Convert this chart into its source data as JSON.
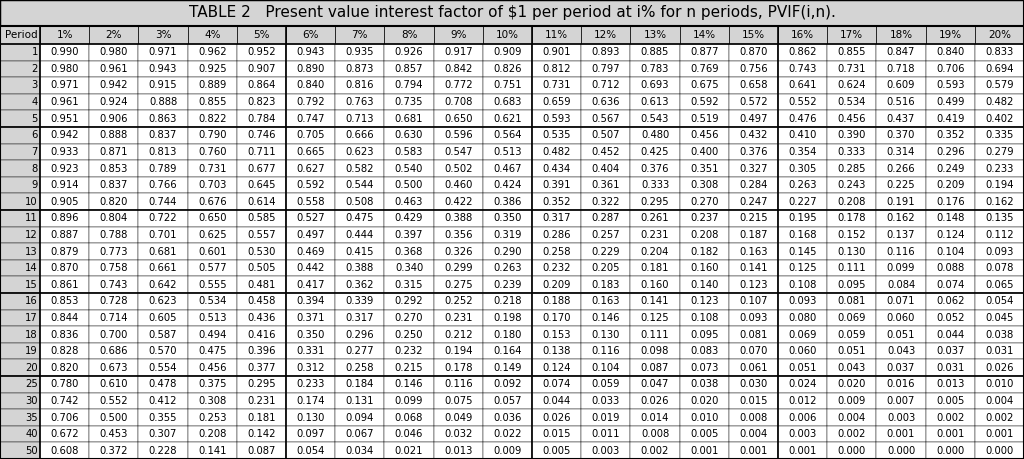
{
  "title": "TABLE 2   Present value interest factor of $1 per period at i% for n periods, PVIF(i,n).",
  "columns": [
    "Period",
    "1%",
    "2%",
    "3%",
    "4%",
    "5%",
    "6%",
    "7%",
    "8%",
    "9%",
    "10%",
    "11%",
    "12%",
    "13%",
    "14%",
    "15%",
    "16%",
    "17%",
    "18%",
    "19%",
    "20%"
  ],
  "rows": [
    [
      1,
      0.99,
      0.98,
      0.971,
      0.962,
      0.952,
      0.943,
      0.935,
      0.926,
      0.917,
      0.909,
      0.901,
      0.893,
      0.885,
      0.877,
      0.87,
      0.862,
      0.855,
      0.847,
      0.84,
      0.833
    ],
    [
      2,
      0.98,
      0.961,
      0.943,
      0.925,
      0.907,
      0.89,
      0.873,
      0.857,
      0.842,
      0.826,
      0.812,
      0.797,
      0.783,
      0.769,
      0.756,
      0.743,
      0.731,
      0.718,
      0.706,
      0.694
    ],
    [
      3,
      0.971,
      0.942,
      0.915,
      0.889,
      0.864,
      0.84,
      0.816,
      0.794,
      0.772,
      0.751,
      0.731,
      0.712,
      0.693,
      0.675,
      0.658,
      0.641,
      0.624,
      0.609,
      0.593,
      0.579
    ],
    [
      4,
      0.961,
      0.924,
      0.888,
      0.855,
      0.823,
      0.792,
      0.763,
      0.735,
      0.708,
      0.683,
      0.659,
      0.636,
      0.613,
      0.592,
      0.572,
      0.552,
      0.534,
      0.516,
      0.499,
      0.482
    ],
    [
      5,
      0.951,
      0.906,
      0.863,
      0.822,
      0.784,
      0.747,
      0.713,
      0.681,
      0.65,
      0.621,
      0.593,
      0.567,
      0.543,
      0.519,
      0.497,
      0.476,
      0.456,
      0.437,
      0.419,
      0.402
    ],
    [
      6,
      0.942,
      0.888,
      0.837,
      0.79,
      0.746,
      0.705,
      0.666,
      0.63,
      0.596,
      0.564,
      0.535,
      0.507,
      0.48,
      0.456,
      0.432,
      0.41,
      0.39,
      0.37,
      0.352,
      0.335
    ],
    [
      7,
      0.933,
      0.871,
      0.813,
      0.76,
      0.711,
      0.665,
      0.623,
      0.583,
      0.547,
      0.513,
      0.482,
      0.452,
      0.425,
      0.4,
      0.376,
      0.354,
      0.333,
      0.314,
      0.296,
      0.279
    ],
    [
      8,
      0.923,
      0.853,
      0.789,
      0.731,
      0.677,
      0.627,
      0.582,
      0.54,
      0.502,
      0.467,
      0.434,
      0.404,
      0.376,
      0.351,
      0.327,
      0.305,
      0.285,
      0.266,
      0.249,
      0.233
    ],
    [
      9,
      0.914,
      0.837,
      0.766,
      0.703,
      0.645,
      0.592,
      0.544,
      0.5,
      0.46,
      0.424,
      0.391,
      0.361,
      0.333,
      0.308,
      0.284,
      0.263,
      0.243,
      0.225,
      0.209,
      0.194
    ],
    [
      10,
      0.905,
      0.82,
      0.744,
      0.676,
      0.614,
      0.558,
      0.508,
      0.463,
      0.422,
      0.386,
      0.352,
      0.322,
      0.295,
      0.27,
      0.247,
      0.227,
      0.208,
      0.191,
      0.176,
      0.162
    ],
    [
      11,
      0.896,
      0.804,
      0.722,
      0.65,
      0.585,
      0.527,
      0.475,
      0.429,
      0.388,
      0.35,
      0.317,
      0.287,
      0.261,
      0.237,
      0.215,
      0.195,
      0.178,
      0.162,
      0.148,
      0.135
    ],
    [
      12,
      0.887,
      0.788,
      0.701,
      0.625,
      0.557,
      0.497,
      0.444,
      0.397,
      0.356,
      0.319,
      0.286,
      0.257,
      0.231,
      0.208,
      0.187,
      0.168,
      0.152,
      0.137,
      0.124,
      0.112
    ],
    [
      13,
      0.879,
      0.773,
      0.681,
      0.601,
      0.53,
      0.469,
      0.415,
      0.368,
      0.326,
      0.29,
      0.258,
      0.229,
      0.204,
      0.182,
      0.163,
      0.145,
      0.13,
      0.116,
      0.104,
      0.093
    ],
    [
      14,
      0.87,
      0.758,
      0.661,
      0.577,
      0.505,
      0.442,
      0.388,
      0.34,
      0.299,
      0.263,
      0.232,
      0.205,
      0.181,
      0.16,
      0.141,
      0.125,
      0.111,
      0.099,
      0.088,
      0.078
    ],
    [
      15,
      0.861,
      0.743,
      0.642,
      0.555,
      0.481,
      0.417,
      0.362,
      0.315,
      0.275,
      0.239,
      0.209,
      0.183,
      0.16,
      0.14,
      0.123,
      0.108,
      0.095,
      0.084,
      0.074,
      0.065
    ],
    [
      16,
      0.853,
      0.728,
      0.623,
      0.534,
      0.458,
      0.394,
      0.339,
      0.292,
      0.252,
      0.218,
      0.188,
      0.163,
      0.141,
      0.123,
      0.107,
      0.093,
      0.081,
      0.071,
      0.062,
      0.054
    ],
    [
      17,
      0.844,
      0.714,
      0.605,
      0.513,
      0.436,
      0.371,
      0.317,
      0.27,
      0.231,
      0.198,
      0.17,
      0.146,
      0.125,
      0.108,
      0.093,
      0.08,
      0.069,
      0.06,
      0.052,
      0.045
    ],
    [
      18,
      0.836,
      0.7,
      0.587,
      0.494,
      0.416,
      0.35,
      0.296,
      0.25,
      0.212,
      0.18,
      0.153,
      0.13,
      0.111,
      0.095,
      0.081,
      0.069,
      0.059,
      0.051,
      0.044,
      0.038
    ],
    [
      19,
      0.828,
      0.686,
      0.57,
      0.475,
      0.396,
      0.331,
      0.277,
      0.232,
      0.194,
      0.164,
      0.138,
      0.116,
      0.098,
      0.083,
      0.07,
      0.06,
      0.051,
      0.043,
      0.037,
      0.031
    ],
    [
      20,
      0.82,
      0.673,
      0.554,
      0.456,
      0.377,
      0.312,
      0.258,
      0.215,
      0.178,
      0.149,
      0.124,
      0.104,
      0.087,
      0.073,
      0.061,
      0.051,
      0.043,
      0.037,
      0.031,
      0.026
    ],
    [
      25,
      0.78,
      0.61,
      0.478,
      0.375,
      0.295,
      0.233,
      0.184,
      0.146,
      0.116,
      0.092,
      0.074,
      0.059,
      0.047,
      0.038,
      0.03,
      0.024,
      0.02,
      0.016,
      0.013,
      0.01
    ],
    [
      30,
      0.742,
      0.552,
      0.412,
      0.308,
      0.231,
      0.174,
      0.131,
      0.099,
      0.075,
      0.057,
      0.044,
      0.033,
      0.026,
      0.02,
      0.015,
      0.012,
      0.009,
      0.007,
      0.005,
      0.004
    ],
    [
      35,
      0.706,
      0.5,
      0.355,
      0.253,
      0.181,
      0.13,
      0.094,
      0.068,
      0.049,
      0.036,
      0.026,
      0.019,
      0.014,
      0.01,
      0.008,
      0.006,
      0.004,
      0.003,
      0.002,
      0.002
    ],
    [
      40,
      0.672,
      0.453,
      0.307,
      0.208,
      0.142,
      0.097,
      0.067,
      0.046,
      0.032,
      0.022,
      0.015,
      0.011,
      0.008,
      0.005,
      0.004,
      0.003,
      0.002,
      0.001,
      0.001,
      0.001
    ],
    [
      50,
      0.608,
      0.372,
      0.228,
      0.141,
      0.087,
      0.054,
      0.034,
      0.021,
      0.013,
      0.009,
      0.005,
      0.003,
      0.002,
      0.001,
      0.001,
      0.001,
      0.0,
      0.0,
      0.0,
      0.0
    ]
  ],
  "group_sep_after_periods": [
    5,
    10,
    15,
    20
  ],
  "thick_col_after": [
    5,
    10,
    15
  ],
  "bg_gray": "#d4d4d4",
  "bg_white": "#ffffff",
  "border_color": "#000000",
  "text_color": "#000000",
  "title_fontsize": 11.0,
  "header_fontsize": 7.5,
  "cell_fontsize": 7.2,
  "period_fontsize": 7.2
}
